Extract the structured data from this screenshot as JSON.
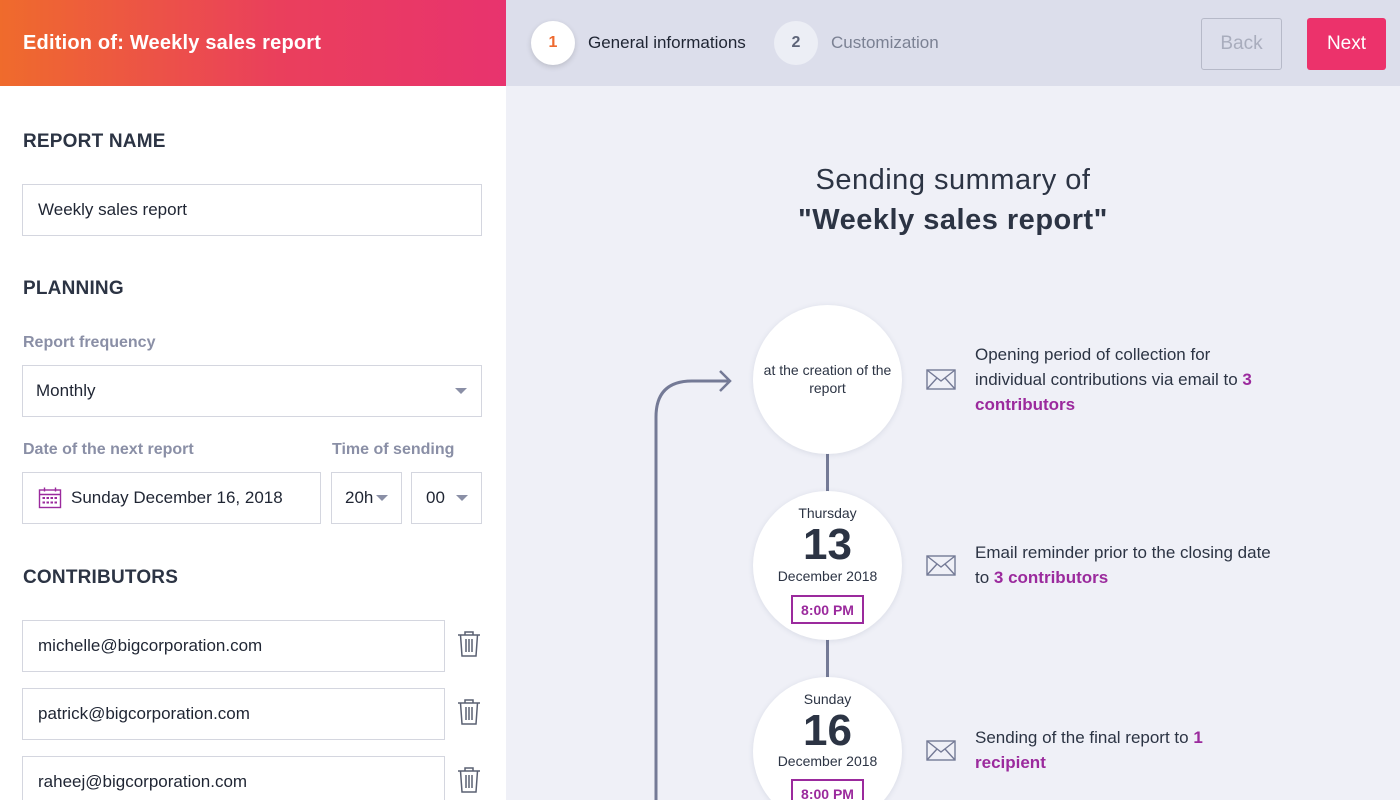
{
  "header": {
    "title": "Edition of: Weekly sales report",
    "steps": [
      {
        "number": "1",
        "label": "General informations"
      },
      {
        "number": "2",
        "label": "Customization"
      }
    ],
    "back_label": "Back",
    "next_label": "Next"
  },
  "form": {
    "report_name_title": "REPORT NAME",
    "report_name_value": "Weekly sales report",
    "planning_title": "PLANNING",
    "frequency_label": "Report frequency",
    "frequency_value": "Monthly",
    "date_label": "Date of the next report",
    "date_value": "Sunday December 16, 2018",
    "time_label": "Time of sending",
    "hour_value": "20h",
    "minute_value": "00",
    "contributors_title": "CONTRIBUTORS",
    "contributors": [
      "michelle@bigcorporation.com",
      "patrick@bigcorporation.com",
      "raheej@bigcorporation.com"
    ]
  },
  "summary": {
    "title_line1": "Sending summary of",
    "title_line2": "\"Weekly sales report\"",
    "events": [
      {
        "circle_text": "at the creation of the report",
        "desc_prefix": "Opening period of collection for individual contributions via email to ",
        "desc_highlight": "3 contributors"
      },
      {
        "weekday": "Thursday",
        "day": "13",
        "month": "December 2018",
        "time": "8:00 PM",
        "desc_prefix": "Email reminder prior to the closing date to ",
        "desc_highlight": "3 contributors"
      },
      {
        "weekday": "Sunday",
        "day": "16",
        "month": "December 2018",
        "time": "8:00 PM",
        "desc_prefix": "Sending of the final report to ",
        "desc_highlight": "1 recipient"
      }
    ]
  },
  "colors": {
    "accent": "#ec326b",
    "highlight": "#9b2a9d",
    "step_active": "#ee6a30"
  }
}
